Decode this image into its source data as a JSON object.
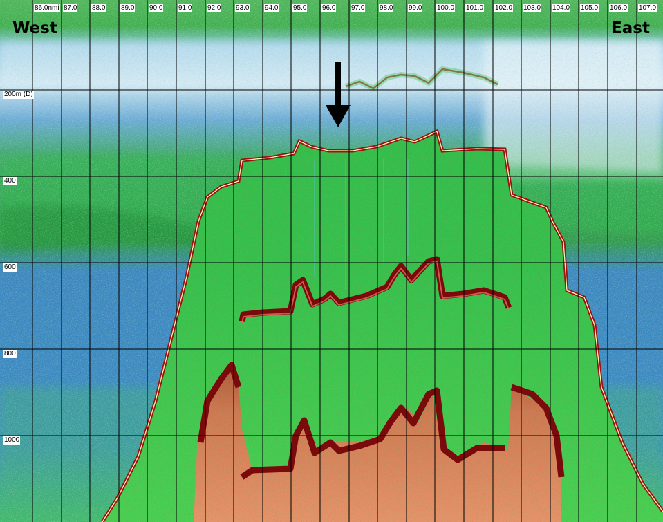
{
  "directions": {
    "west": "West",
    "east": "East"
  },
  "distance_ticks": [
    "86.0nmi",
    "87.0",
    "88.0",
    "89.0",
    "90.0",
    "91.0",
    "92.0",
    "93.0",
    "94.0",
    "95.0",
    "96.0",
    "97.0",
    "98.0",
    "99.0",
    "100.0",
    "101.0",
    "102.0",
    "103.0",
    "104.0",
    "105.0",
    "106.0",
    "107.0"
  ],
  "depth_ticks": [
    "200m (D)",
    "400",
    "600",
    "800",
    "1000"
  ],
  "colors": {
    "water_blue": "#3a86c0",
    "water_pale": "#cfe6f4",
    "scatter_green": "#2fbf4a",
    "bright_green": "#45e04c",
    "bottom_red": "#8a0c10",
    "bottom_orange": "#e0875a",
    "grid": "#000000"
  },
  "annotation": {
    "icon": "down-arrow-icon"
  }
}
